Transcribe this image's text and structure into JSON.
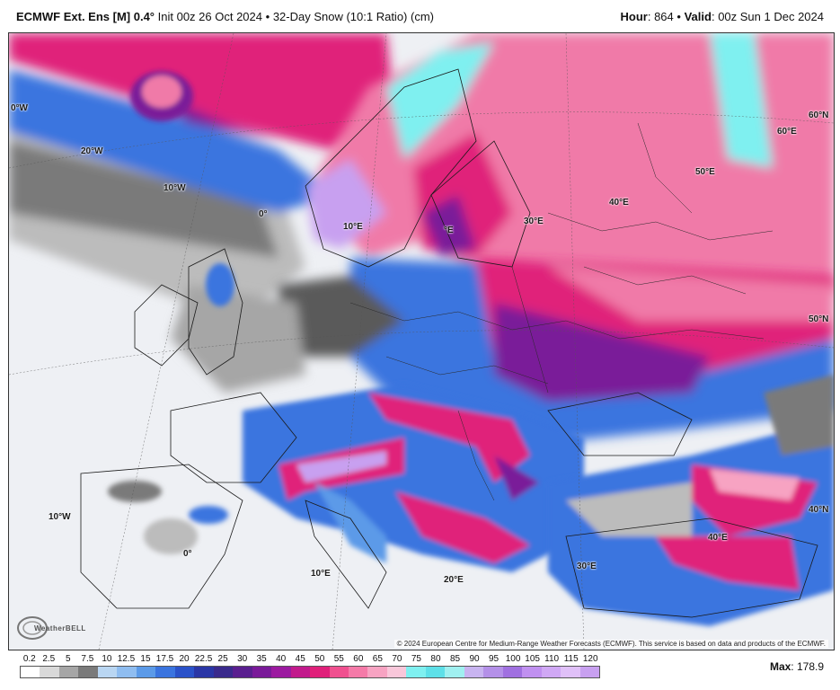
{
  "header": {
    "model": "ECMWF Ext. Ens [M]",
    "resolution": "0.4°",
    "init": "Init 00z 26 Oct 2024",
    "sep": "•",
    "product": "32-Day Snow (10:1 Ratio) (cm)",
    "hour_label": "Hour",
    "hour_value": "864",
    "valid_label": "Valid",
    "valid_value": "00z Sun 1 Dec 2024"
  },
  "map": {
    "grid_labels": {
      "w0": "0°W",
      "w20": "20°W",
      "w10": "10°W",
      "e0_top": "0°",
      "e10_top": "10°E",
      "e_small": "°E",
      "e30": "30°E",
      "e40": "40°E",
      "e50": "50°E",
      "n60": "60°N",
      "e60": "60°E",
      "n50": "50°N",
      "n40": "40°N",
      "w10_low": "10°W",
      "e0_low": "0°",
      "e10_low": "10°E",
      "e20_low": "20°E",
      "e30_low": "30°E",
      "e40_low": "40°E"
    },
    "copyright": "© 2024 European Centre for Medium-Range Weather Forecasts (ECMWF). This service is based on data and products of the ECMWF.",
    "logo_text": "WeatherBELL"
  },
  "legend": {
    "labels": [
      "0.2",
      "2.5",
      "5",
      "7.5",
      "10",
      "12.5",
      "15",
      "17.5",
      "20",
      "22.5",
      "25",
      "30",
      "35",
      "40",
      "45",
      "50",
      "55",
      "60",
      "65",
      "70",
      "75",
      "80",
      "85",
      "90",
      "95",
      "100",
      "105",
      "110",
      "115",
      "120"
    ],
    "colors": [
      "#ffffff",
      "#d9d9d9",
      "#a6a6a6",
      "#7a7a7a",
      "#b9d6f2",
      "#8fbdf0",
      "#5b9ae8",
      "#3a74df",
      "#2a52c9",
      "#2a36a6",
      "#3a2a8c",
      "#5a1f8f",
      "#7a1a99",
      "#9c1aa0",
      "#c21a8c",
      "#e0207a",
      "#f0508f",
      "#f57aa8",
      "#f7a3c2",
      "#f9c7da",
      "#7ff0f0",
      "#5ee0e8",
      "#a0f0f0",
      "#c8b4f0",
      "#b490e8",
      "#a070e0",
      "#c090f0",
      "#d0a8f5",
      "#e0c0f8",
      "#c8a0f0"
    ],
    "max_label": "Max",
    "max_value": "178.9"
  }
}
